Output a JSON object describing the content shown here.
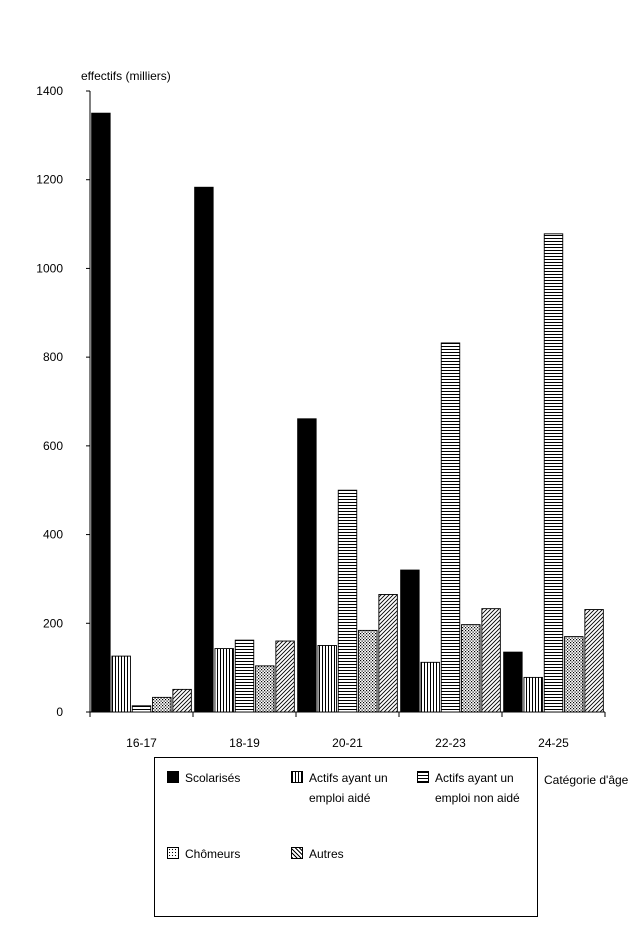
{
  "chart_data": {
    "type": "bar",
    "ylabel": "effectifs (milliers)",
    "xlabel": "Catégorie d'âge",
    "categories": [
      "16-17",
      "18-19",
      "20-21",
      "22-23",
      "24-25"
    ],
    "ylim": [
      0,
      1400
    ],
    "yticks": [
      0,
      200,
      400,
      600,
      800,
      1000,
      1200,
      1400
    ],
    "series": [
      {
        "name": "Scolarisés",
        "pattern": "solid",
        "values": [
          1350,
          1183,
          661,
          320,
          135
        ]
      },
      {
        "name": "Actifs ayant un emploi aidé",
        "pattern": "vertical",
        "values": [
          126,
          143,
          150,
          112,
          78
        ]
      },
      {
        "name": "Actifs ayant un emploi non aidé",
        "pattern": "horizontal",
        "values": [
          14,
          162,
          500,
          832,
          1078
        ]
      },
      {
        "name": "Chômeurs",
        "pattern": "dots",
        "values": [
          33,
          104,
          184,
          197,
          170
        ]
      },
      {
        "name": "Autres",
        "pattern": "diagonal",
        "values": [
          51,
          160,
          265,
          233,
          231
        ]
      }
    ],
    "grid": false,
    "legend_position": "bottom"
  }
}
